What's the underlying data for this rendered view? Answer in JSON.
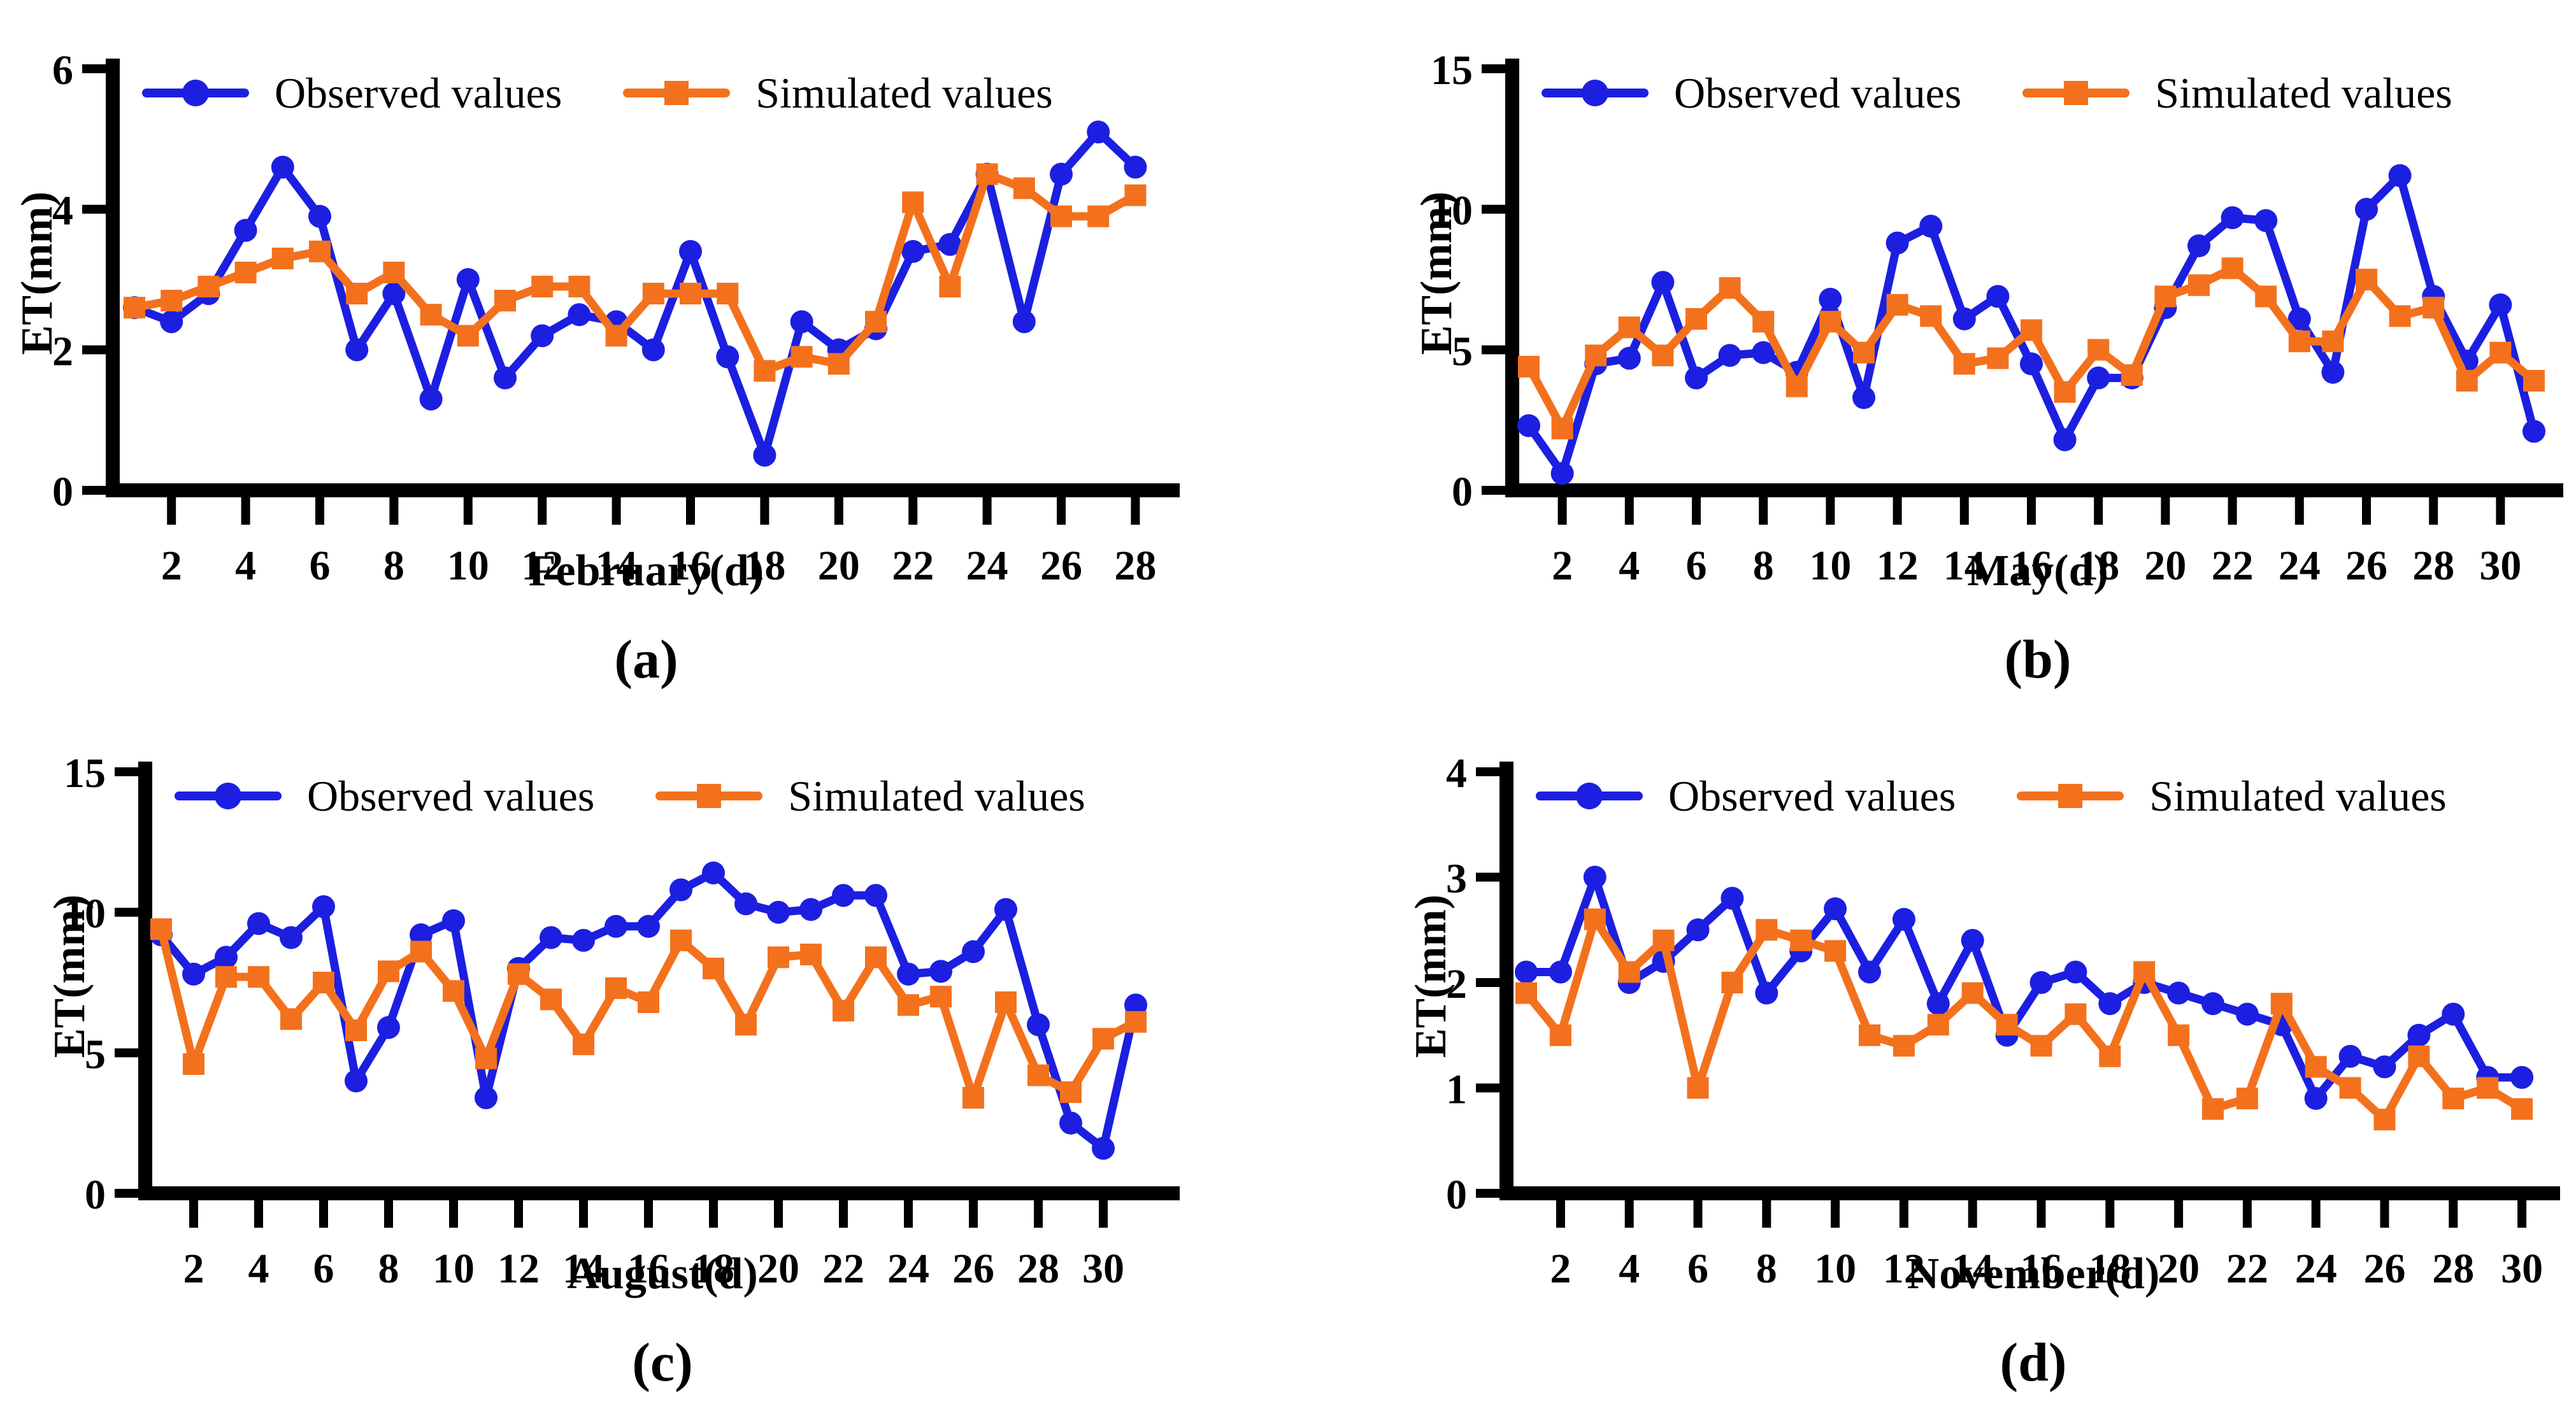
{
  "figure": {
    "colors": {
      "observed": "#1c1fe0",
      "simulated": "#f3711d",
      "axis": "#000000",
      "background": "#ffffff"
    },
    "legend": {
      "observed_label": "Observed values",
      "simulated_label": "Simulated values"
    }
  },
  "chart_data": [
    {
      "type": "line",
      "panel_label": "(a)",
      "xlabel": "February(d)",
      "ylabel": "ET(mm)",
      "x_day_start": 1,
      "days": 28,
      "ylim": [
        0,
        6
      ],
      "yticks": [
        0,
        2,
        4,
        6
      ],
      "xticks": [
        2,
        4,
        6,
        8,
        10,
        12,
        14,
        16,
        18,
        20,
        22,
        24,
        26,
        28
      ],
      "grid": false,
      "legend_position": "top-inside",
      "series": [
        {
          "name": "Observed values",
          "marker": "circle",
          "color_key": "observed",
          "values": [
            2.6,
            2.4,
            2.8,
            3.7,
            4.6,
            3.9,
            2.0,
            2.8,
            1.3,
            3.0,
            1.6,
            2.2,
            2.5,
            2.4,
            2.0,
            3.4,
            1.9,
            0.5,
            2.4,
            2.0,
            2.3,
            3.4,
            3.5,
            4.5,
            2.4,
            4.5,
            5.1,
            4.6
          ]
        },
        {
          "name": "Simulated values",
          "marker": "square",
          "color_key": "simulated",
          "values": [
            2.6,
            2.7,
            2.9,
            3.1,
            3.3,
            3.4,
            2.8,
            3.1,
            2.5,
            2.2,
            2.7,
            2.9,
            2.9,
            2.2,
            2.8,
            2.8,
            2.8,
            1.7,
            1.9,
            1.8,
            2.4,
            4.1,
            2.9,
            4.5,
            4.3,
            3.9,
            3.9,
            4.2
          ]
        }
      ]
    },
    {
      "type": "line",
      "panel_label": "(b)",
      "xlabel": "May(d)",
      "ylabel": "ET(mm)",
      "x_day_start": 1,
      "days": 31,
      "ylim": [
        0,
        15
      ],
      "yticks": [
        0,
        5,
        10,
        15
      ],
      "xticks": [
        2,
        4,
        6,
        8,
        10,
        12,
        14,
        16,
        18,
        20,
        22,
        24,
        26,
        28,
        30
      ],
      "grid": false,
      "legend_position": "top-inside",
      "series": [
        {
          "name": "Observed values",
          "marker": "circle",
          "color_key": "observed",
          "values": [
            2.3,
            0.6,
            4.5,
            4.7,
            7.4,
            4.0,
            4.8,
            4.9,
            4.2,
            6.8,
            3.3,
            8.8,
            9.4,
            6.1,
            6.9,
            4.5,
            1.8,
            4.0,
            4.0,
            6.5,
            8.7,
            9.7,
            9.6,
            6.1,
            4.2,
            10.0,
            11.2,
            6.9,
            4.6,
            6.6,
            2.1
          ]
        },
        {
          "name": "Simulated values",
          "marker": "square",
          "color_key": "simulated",
          "values": [
            4.4,
            2.2,
            4.8,
            5.8,
            4.8,
            6.1,
            7.2,
            6.0,
            3.7,
            6.0,
            4.9,
            6.6,
            6.2,
            4.5,
            4.7,
            5.7,
            3.5,
            5.0,
            4.1,
            6.9,
            7.3,
            7.9,
            6.9,
            5.3,
            5.3,
            7.5,
            6.2,
            6.5,
            3.9,
            4.9,
            3.9
          ]
        }
      ]
    },
    {
      "type": "line",
      "panel_label": "(c)",
      "xlabel": "August(d)",
      "ylabel": "ET(mm)",
      "x_day_start": 1,
      "days": 31,
      "ylim": [
        0,
        15
      ],
      "yticks": [
        0,
        5,
        10,
        15
      ],
      "xticks": [
        2,
        4,
        6,
        8,
        10,
        12,
        14,
        16,
        18,
        20,
        22,
        24,
        26,
        28,
        30
      ],
      "grid": false,
      "legend_position": "top-inside",
      "series": [
        {
          "name": "Observed values",
          "marker": "circle",
          "color_key": "observed",
          "values": [
            9.2,
            7.8,
            8.4,
            9.6,
            9.1,
            10.2,
            4.0,
            5.9,
            9.2,
            9.7,
            3.4,
            8.0,
            9.1,
            9.0,
            9.5,
            9.5,
            10.8,
            11.4,
            10.3,
            10.0,
            10.1,
            10.6,
            10.6,
            7.8,
            7.9,
            8.6,
            10.1,
            6.0,
            2.5,
            1.6,
            6.7
          ]
        },
        {
          "name": "Simulated values",
          "marker": "square",
          "color_key": "simulated",
          "values": [
            9.4,
            4.6,
            7.7,
            7.7,
            6.2,
            7.5,
            5.8,
            7.9,
            8.6,
            7.2,
            4.8,
            7.8,
            6.9,
            5.3,
            7.3,
            6.8,
            9.0,
            8.0,
            6.0,
            8.4,
            8.5,
            6.5,
            8.4,
            6.7,
            7.0,
            3.4,
            6.8,
            4.2,
            3.6,
            5.5,
            6.1
          ]
        }
      ]
    },
    {
      "type": "line",
      "panel_label": "(d)",
      "xlabel": "November(d)",
      "ylabel": "ET(mm)",
      "x_day_start": 1,
      "days": 30,
      "ylim": [
        0,
        4
      ],
      "yticks": [
        0,
        1,
        2,
        3,
        4
      ],
      "xticks": [
        2,
        4,
        6,
        8,
        10,
        12,
        14,
        16,
        18,
        20,
        22,
        24,
        26,
        28,
        30
      ],
      "grid": false,
      "legend_position": "top-inside",
      "series": [
        {
          "name": "Observed values",
          "marker": "circle",
          "color_key": "observed",
          "values": [
            2.1,
            2.1,
            3.0,
            2.0,
            2.2,
            2.5,
            2.8,
            1.9,
            2.3,
            2.7,
            2.1,
            2.6,
            1.8,
            2.4,
            1.5,
            2.0,
            2.1,
            1.8,
            2.0,
            1.9,
            1.8,
            1.7,
            1.6,
            0.9,
            1.3,
            1.2,
            1.5,
            1.7,
            1.1,
            1.1
          ]
        },
        {
          "name": "Simulated values",
          "marker": "square",
          "color_key": "simulated",
          "values": [
            1.9,
            1.5,
            2.6,
            2.1,
            2.4,
            1.0,
            2.0,
            2.5,
            2.4,
            2.3,
            1.5,
            1.4,
            1.6,
            1.9,
            1.6,
            1.4,
            1.7,
            1.3,
            2.1,
            1.5,
            0.8,
            0.9,
            1.8,
            1.2,
            1.0,
            0.7,
            1.3,
            0.9,
            1.0,
            0.8
          ]
        }
      ]
    }
  ]
}
